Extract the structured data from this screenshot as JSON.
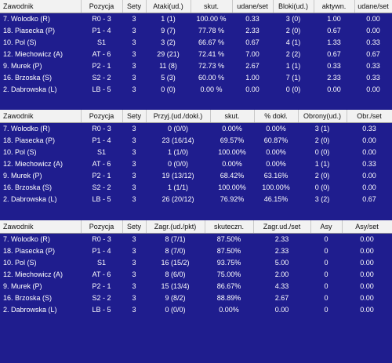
{
  "tables": [
    {
      "headers": [
        "Zawodnik",
        "Pozycja",
        "Sety",
        "Ataki(ud.)",
        "skut.",
        "udane/set",
        "Bloki(ud.)",
        "aktywn.",
        "udane/set"
      ],
      "rows": [
        [
          "7. Wolodko (R)",
          "R0 - 3",
          "3",
          "1 (1)",
          "100.00 %",
          "0.33",
          "3 (0)",
          "1.00",
          "0.00"
        ],
        [
          "18. Piasecka (P)",
          "P1 - 4",
          "3",
          "9 (7)",
          "77.78 %",
          "2.33",
          "2 (0)",
          "0.67",
          "0.00"
        ],
        [
          "10. Pol (S)",
          "S1",
          "3",
          "3 (2)",
          "66.67 %",
          "0.67",
          "4 (1)",
          "1.33",
          "0.33"
        ],
        [
          "12. Miechowicz (A)",
          "AT - 6",
          "3",
          "29 (21)",
          "72.41 %",
          "7.00",
          "2 (2)",
          "0.67",
          "0.67"
        ],
        [
          "9. Murek (P)",
          "P2 - 1",
          "3",
          "11 (8)",
          "72.73 %",
          "2.67",
          "1 (1)",
          "0.33",
          "0.33"
        ],
        [
          "16. Brzoska (S)",
          "S2 - 2",
          "3",
          "5 (3)",
          "60.00 %",
          "1.00",
          "7 (1)",
          "2.33",
          "0.33"
        ],
        [
          "2. Dabrowska (L)",
          "LB - 5",
          "3",
          "0 (0)",
          "0.00 %",
          "0.00",
          "0 (0)",
          "0.00",
          "0.00"
        ]
      ]
    },
    {
      "headers": [
        "Zawodnik",
        "Pozycja",
        "Sety",
        "Przyj.(ud./dokł.)",
        "skut.",
        "% dokł.",
        "Obrony(ud.)",
        "Obr./set"
      ],
      "rows": [
        [
          "7. Wolodko (R)",
          "R0 - 3",
          "3",
          "0 (0/0)",
          "0.00%",
          "0.00%",
          "3 (1)",
          "0.33"
        ],
        [
          "18. Piasecka (P)",
          "P1 - 4",
          "3",
          "23 (16/14)",
          "69.57%",
          "60.87%",
          "2 (0)",
          "0.00"
        ],
        [
          "10. Pol (S)",
          "S1",
          "3",
          "1 (1/0)",
          "100.00%",
          "0.00%",
          "0 (0)",
          "0.00"
        ],
        [
          "12. Miechowicz (A)",
          "AT - 6",
          "3",
          "0 (0/0)",
          "0.00%",
          "0.00%",
          "1 (1)",
          "0.33"
        ],
        [
          "9. Murek (P)",
          "P2 - 1",
          "3",
          "19 (13/12)",
          "68.42%",
          "63.16%",
          "2 (0)",
          "0.00"
        ],
        [
          "16. Brzoska (S)",
          "S2 - 2",
          "3",
          "1 (1/1)",
          "100.00%",
          "100.00%",
          "0 (0)",
          "0.00"
        ],
        [
          "2. Dabrowska (L)",
          "LB - 5",
          "3",
          "26 (20/12)",
          "76.92%",
          "46.15%",
          "3 (2)",
          "0.67"
        ]
      ]
    },
    {
      "headers": [
        "Zawodnik",
        "Pozycja",
        "Sety",
        "Zagr.(ud./pkt)",
        "skuteczn.",
        "Zagr.ud./set",
        "Asy",
        "Asy/set"
      ],
      "rows": [
        [
          "7. Wolodko (R)",
          "R0 - 3",
          "3",
          "8 (7/1)",
          "87.50%",
          "2.33",
          "0",
          "0.00"
        ],
        [
          "18. Piasecka (P)",
          "P1 - 4",
          "3",
          "8 (7/0)",
          "87.50%",
          "2.33",
          "0",
          "0.00"
        ],
        [
          "10. Pol (S)",
          "S1",
          "3",
          "16 (15/2)",
          "93.75%",
          "5.00",
          "0",
          "0.00"
        ],
        [
          "12. Miechowicz (A)",
          "AT - 6",
          "3",
          "8 (6/0)",
          "75.00%",
          "2.00",
          "0",
          "0.00"
        ],
        [
          "9. Murek (P)",
          "P2 - 1",
          "3",
          "15 (13/4)",
          "86.67%",
          "4.33",
          "0",
          "0.00"
        ],
        [
          "16. Brzoska (S)",
          "S2 - 2",
          "3",
          "9 (8/2)",
          "88.89%",
          "2.67",
          "0",
          "0.00"
        ],
        [
          "2. Dabrowska (L)",
          "LB - 5",
          "3",
          "0 (0/0)",
          "0.00%",
          "0.00",
          "0",
          "0.00"
        ]
      ]
    }
  ]
}
